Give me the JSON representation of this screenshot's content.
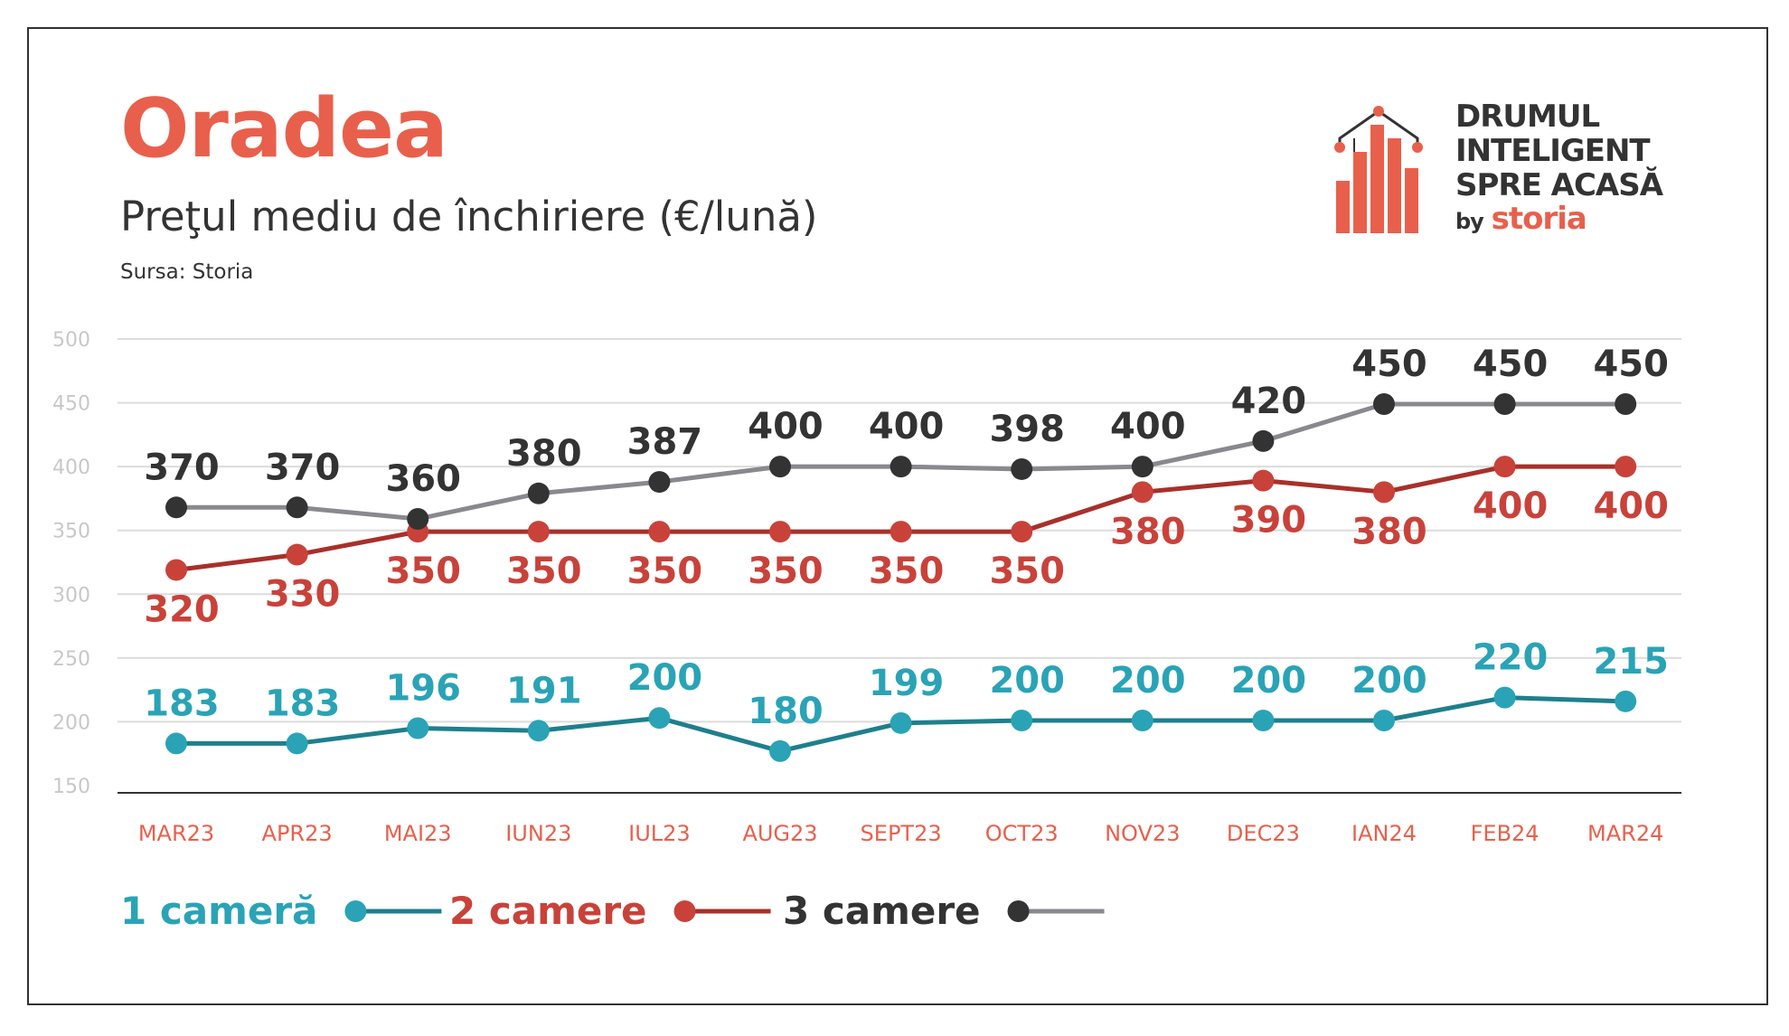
{
  "title": "Oradea",
  "subtitle": "Preţul mediu de închiriere (€/lună)",
  "source": "Sursa: Storia",
  "logo": {
    "lines": [
      "DRUMUL",
      "INTELIGENT",
      "SPRE ACASĂ"
    ],
    "by": "by",
    "brand": "storia"
  },
  "colors": {
    "title": "#e8604c",
    "text": "#333333",
    "grid": "#dcdcdc",
    "axis": "#333333",
    "tick_y": "#c8c8c8",
    "tick_x": "#e8604c"
  },
  "chart_data": {
    "type": "line",
    "title": "Preţul mediu de închiriere (€/lună)",
    "xlabel": "",
    "ylabel": "",
    "categories": [
      "MAR23",
      "APR23",
      "MAI23",
      "IUN23",
      "IUL23",
      "AUG23",
      "SEPT23",
      "OCT23",
      "NOV23",
      "DEC23",
      "IAN24",
      "FEB24",
      "MAR24"
    ],
    "yticks": [
      150,
      200,
      250,
      300,
      350,
      400,
      450,
      500
    ],
    "ylim": [
      150,
      500
    ],
    "grid": true,
    "legend_position": "bottom-left",
    "series": [
      {
        "name": "1 cameră",
        "color": "#2aa3b6",
        "line_color": "#1e7f8d",
        "values": [
          183,
          183,
          196,
          191,
          200,
          180,
          199,
          200,
          200,
          200,
          200,
          220,
          215
        ],
        "plot_values": [
          183,
          183,
          195,
          193,
          203,
          177,
          199,
          201,
          201,
          201,
          201,
          219,
          216
        ],
        "label_position": "above"
      },
      {
        "name": "2 camere",
        "color": "#c8423a",
        "line_color": "#a8302a",
        "values": [
          320,
          330,
          350,
          350,
          350,
          350,
          350,
          350,
          380,
          390,
          380,
          400,
          400
        ],
        "plot_values": [
          319,
          331,
          349,
          349,
          349,
          349,
          349,
          349,
          380,
          389,
          380,
          400,
          400
        ],
        "label_position": "below"
      },
      {
        "name": "3 camere",
        "color": "#333333",
        "line_color": "#88888e",
        "values": [
          370,
          370,
          360,
          380,
          387,
          400,
          400,
          398,
          400,
          420,
          450,
          450,
          450
        ],
        "plot_values": [
          368,
          368,
          359,
          379,
          388,
          400,
          400,
          398,
          400,
          420,
          449,
          449,
          449
        ],
        "label_position": "above"
      }
    ]
  }
}
